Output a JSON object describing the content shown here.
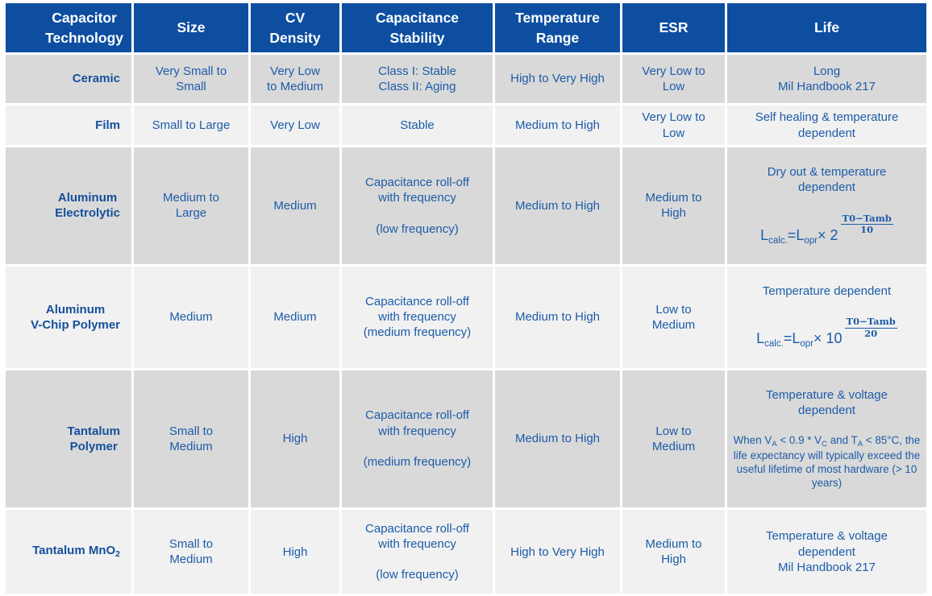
{
  "colors": {
    "header_bg": "#0D4EA1",
    "header_text": "#FFFFFF",
    "row_gray": "#D9D9D9",
    "row_light": "#F1F1F1",
    "body_text": "#1D5CA9",
    "tech_name_text": "#15509C",
    "page_bg": "#FFFFFF"
  },
  "table": {
    "headers": [
      "Capacitor\nTechnology",
      "Size",
      "CV\nDensity",
      "Capacitance\nStability",
      "Temperature\nRange",
      "ESR",
      "Life"
    ],
    "rows": [
      {
        "name": "Ceramic",
        "size": "Very Small to\nSmall",
        "cv": "Very Low\nto Medium",
        "stability": "Class I: Stable\nClass II: Aging",
        "temp": "High to Very High",
        "esr": "Very Low to\nLow",
        "life": "Long\nMil Handbook 217"
      },
      {
        "name": "Film",
        "size": "Small to Large",
        "cv": "Very Low",
        "stability": "Stable",
        "temp": "Medium to High",
        "esr": "Very Low to\nLow",
        "life": "Self healing & temperature\ndependent"
      },
      {
        "name": "Aluminum\nElectrolytic",
        "size": "Medium to\nLarge",
        "cv": "Medium",
        "stability": "Capacitance roll-off\nwith frequency\n\n(low frequency)",
        "temp": "Medium to High",
        "esr": "Medium to\nHigh",
        "life_heading": "Dry out & temperature\ndependent",
        "formula": {
          "l1": "L",
          "sub1": "calc.",
          "eq": "=",
          "l2": "L",
          "sub2": "opr",
          "times": "× ",
          "base": "2",
          "num": "T0−Tamb",
          "den": "10"
        }
      },
      {
        "name": "Aluminum\nV-Chip Polymer",
        "size": "Medium",
        "cv": "Medium",
        "stability": "Capacitance roll-off\nwith frequency\n(medium frequency)",
        "temp": "Medium to High",
        "esr": "Low to\nMedium",
        "life_heading": "Temperature dependent",
        "formula": {
          "l1": "L",
          "sub1": "calc.",
          "eq": "=",
          "l2": "L",
          "sub2": "opr",
          "times": "× ",
          "base": "10",
          "num": "T0−Tamb",
          "den": "20"
        }
      },
      {
        "name": "Tantalum\nPolymer",
        "size": "Small to\nMedium",
        "cv": "High",
        "stability": "Capacitance roll-off\nwith frequency\n\n(medium frequency)",
        "temp": "Medium to High",
        "esr": "Low to\nMedium",
        "life_heading": "Temperature & voltage\ndependent",
        "note": {
          "p1": "When V",
          "s1": "A",
          "p2": " < 0.9 * V",
          "s2": "C",
          "p3": " and T",
          "s3": "A",
          "p4": " < 85°C, the life expectancy will typically exceed the useful lifetime of most hardware (> 10 years)"
        }
      },
      {
        "name_base": "Tantalum MnO",
        "name_sub": "2",
        "size": "Small to\nMedium",
        "cv": "High",
        "stability": "Capacitance roll-off\nwith frequency\n\n(low frequency)",
        "temp": "High to Very High",
        "esr": "Medium to\nHigh",
        "life": "Temperature & voltage\ndependent\nMil Handbook 217"
      }
    ]
  },
  "chart_data": {
    "type": "table",
    "title": "Capacitor Technology Comparison",
    "columns": [
      "Capacitor Technology",
      "Size",
      "CV Density",
      "Capacitance Stability",
      "Temperature Range",
      "ESR",
      "Life"
    ],
    "rows": [
      [
        "Ceramic",
        "Very Small to Small",
        "Very Low to Medium",
        "Class I: Stable; Class II: Aging",
        "High to Very High",
        "Very Low to Low",
        "Long; Mil Handbook 217"
      ],
      [
        "Film",
        "Small to Large",
        "Very Low",
        "Stable",
        "Medium to High",
        "Very Low to Low",
        "Self healing & temperature dependent"
      ],
      [
        "Aluminum Electrolytic",
        "Medium to Large",
        "Medium",
        "Capacitance roll-off with frequency (low frequency)",
        "Medium to High",
        "Medium to High",
        "Dry out & temperature dependent; Lcalc.=Lopr× 2^((T0−Tamb)/10)"
      ],
      [
        "Aluminum V-Chip Polymer",
        "Medium",
        "Medium",
        "Capacitance roll-off with frequency (medium frequency)",
        "Medium to High",
        "Low to Medium",
        "Temperature dependent; Lcalc.=Lopr× 10^((T0−Tamb)/20)"
      ],
      [
        "Tantalum Polymer",
        "Small to Medium",
        "High",
        "Capacitance roll-off with frequency (medium frequency)",
        "Medium to High",
        "Low to Medium",
        "Temperature & voltage dependent; When VA < 0.9 * VC and TA < 85°C, the life expectancy will typically exceed the useful lifetime of most hardware (> 10 years)"
      ],
      [
        "Tantalum MnO2",
        "Small to Medium",
        "High",
        "Capacitance roll-off with frequency (low frequency)",
        "High to Very High",
        "Medium to High",
        "Temperature & voltage dependent; Mil Handbook 217"
      ]
    ]
  }
}
